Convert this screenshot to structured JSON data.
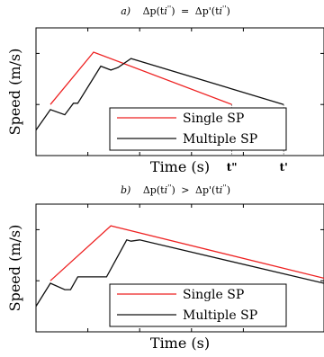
{
  "chart_data": [
    {
      "type": "line",
      "title": "a)   Δp(t''ᵢ) = Δp'(t''ᵢ)",
      "title_parts": {
        "prefix": "a)",
        "lhs": "Δp(t",
        "rel": "=",
        "rhs": "Δp'(t"
      },
      "xlabel": "Time (s)",
      "ylabel": "Speed (m/s)",
      "xlim": [
        0,
        100
      ],
      "ylim": [
        0,
        100
      ],
      "tick_labels_shown": false,
      "annotations": [
        {
          "text": "t\"",
          "x": 68
        },
        {
          "text": "t'",
          "x": 86
        }
      ],
      "legend": {
        "position": "bottom-right",
        "entries": [
          "Single SP",
          "Multiple SP"
        ]
      },
      "series": [
        {
          "name": "Single SP",
          "color": "#ee2222",
          "x": [
            5,
            20,
            68
          ],
          "y": [
            40,
            81,
            40
          ]
        },
        {
          "name": "Multiple SP",
          "color": "#111111",
          "x": [
            0,
            5,
            10,
            13,
            14.5,
            22.5,
            26,
            28.5,
            33,
            86
          ],
          "y": [
            20,
            36,
            32,
            41,
            41,
            70,
            67,
            69,
            76,
            40
          ]
        }
      ]
    },
    {
      "type": "line",
      "title": "b)   Δp(t''ᵢ) > Δp'(t''ᵢ)",
      "title_parts": {
        "prefix": "b)",
        "lhs": "Δp(t",
        "rel": ">",
        "rhs": "Δp'(t"
      },
      "xlabel": "Time (s)",
      "ylabel": "Speed (m/s)",
      "xlim": [
        0,
        100
      ],
      "ylim": [
        0,
        100
      ],
      "tick_labels_shown": false,
      "legend": {
        "position": "bottom-right",
        "entries": [
          "Single SP",
          "Multiple SP"
        ]
      },
      "series": [
        {
          "name": "Single SP",
          "color": "#ee2222",
          "x": [
            5,
            26,
            100
          ],
          "y": [
            40,
            83,
            42
          ]
        },
        {
          "name": "Multiple SP",
          "color": "#111111",
          "x": [
            0,
            5,
            10,
            12,
            14.5,
            24.5,
            31.5,
            33,
            36,
            100
          ],
          "y": [
            20,
            38,
            33,
            33,
            43,
            43,
            72,
            71,
            72,
            38
          ]
        }
      ]
    }
  ]
}
